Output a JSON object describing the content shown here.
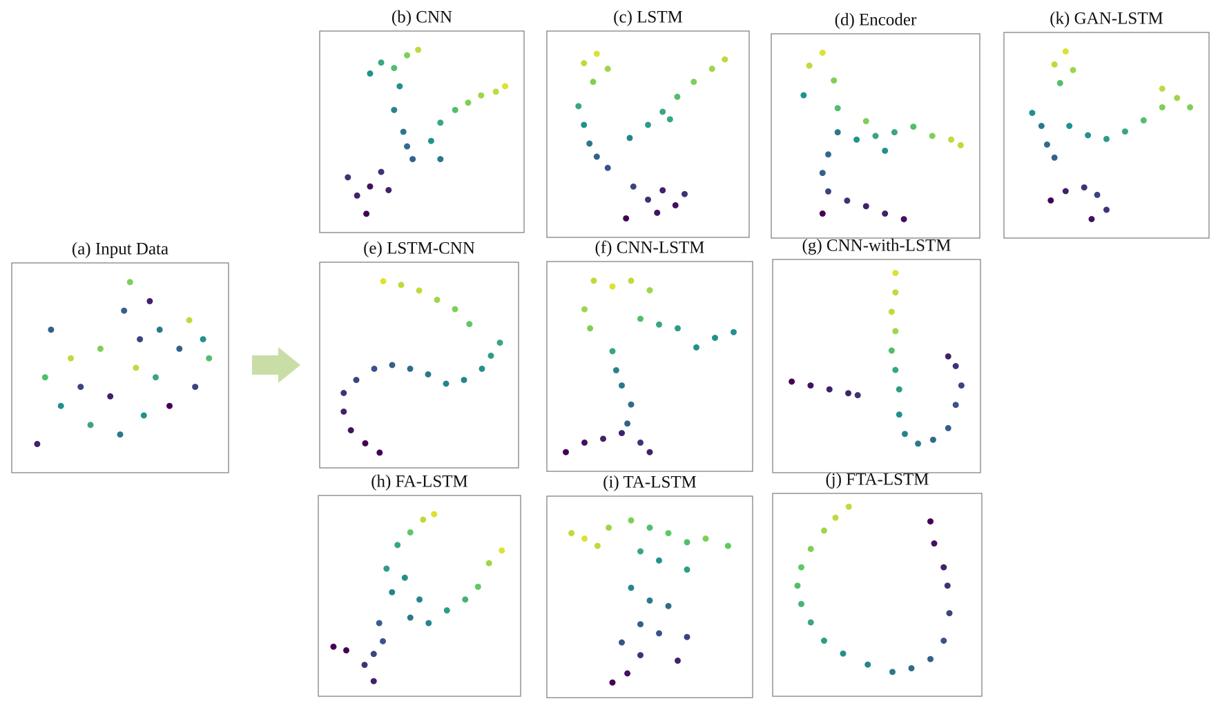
{
  "chart_data": [
    {
      "type": "scatter",
      "title": "(a) Input Data",
      "colormap": "viridis",
      "clim": [
        0,
        1
      ],
      "xlim": [
        0,
        100
      ],
      "ylim": [
        0,
        100
      ],
      "x": [
        8,
        12,
        15,
        20,
        25,
        30,
        35,
        40,
        45,
        50,
        52,
        55,
        58,
        60,
        62,
        65,
        68,
        70,
        75,
        80,
        85,
        88,
        92,
        95
      ],
      "y": [
        10,
        45,
        70,
        30,
        55,
        40,
        20,
        60,
        35,
        15,
        80,
        95,
        50,
        65,
        25,
        85,
        45,
        70,
        30,
        60,
        75,
        40,
        65,
        55
      ],
      "c": [
        0.1,
        0.7,
        0.3,
        0.5,
        0.9,
        0.2,
        0.6,
        0.8,
        0.1,
        0.4,
        0.3,
        0.8,
        0.9,
        0.2,
        0.5,
        0.1,
        0.6,
        0.4,
        0.0,
        0.3,
        0.9,
        0.2,
        0.5,
        0.7
      ]
    },
    {
      "type": "scatter",
      "title": "(b) CNN",
      "colormap": "viridis",
      "clim": [
        0,
        1
      ],
      "xlim": [
        0,
        100
      ],
      "ylim": [
        0,
        100
      ],
      "x": [
        22,
        28,
        35,
        42,
        48,
        38,
        35,
        40,
        42,
        45,
        55,
        60,
        68,
        75,
        82,
        90,
        95,
        60,
        10,
        15,
        22,
        28,
        20,
        32
      ],
      "y": [
        82,
        88,
        85,
        92,
        95,
        75,
        62,
        50,
        42,
        35,
        45,
        55,
        62,
        66,
        70,
        72,
        75,
        35,
        25,
        15,
        20,
        28,
        5,
        18
      ],
      "c": [
        0.5,
        0.6,
        0.7,
        0.8,
        0.9,
        0.5,
        0.45,
        0.4,
        0.35,
        0.3,
        0.5,
        0.6,
        0.7,
        0.8,
        0.85,
        0.9,
        0.95,
        0.4,
        0.15,
        0.1,
        0.05,
        0.15,
        0.0,
        0.1
      ]
    },
    {
      "type": "scatter",
      "title": "(c) LSTM",
      "colormap": "viridis",
      "clim": [
        0,
        1
      ],
      "xlim": [
        0,
        100
      ],
      "ylim": [
        0,
        100
      ],
      "x": [
        15,
        22,
        28,
        20,
        12,
        15,
        18,
        22,
        28,
        40,
        50,
        58,
        66,
        75,
        85,
        92,
        62,
        42,
        50,
        58,
        65,
        70,
        38,
        55
      ],
      "y": [
        88,
        93,
        85,
        78,
        65,
        55,
        45,
        38,
        32,
        48,
        55,
        62,
        70,
        78,
        85,
        90,
        58,
        22,
        15,
        20,
        12,
        18,
        5,
        8
      ],
      "c": [
        0.9,
        0.95,
        0.85,
        0.8,
        0.6,
        0.5,
        0.4,
        0.3,
        0.25,
        0.45,
        0.55,
        0.6,
        0.7,
        0.8,
        0.85,
        0.9,
        0.6,
        0.2,
        0.15,
        0.1,
        0.05,
        0.15,
        0.0,
        0.05
      ]
    },
    {
      "type": "scatter",
      "title": "(d) Encoder",
      "colormap": "viridis",
      "clim": [
        0,
        1
      ],
      "xlim": [
        0,
        100
      ],
      "ylim": [
        0,
        100
      ],
      "x": [
        15,
        22,
        28,
        12,
        30,
        30,
        40,
        50,
        60,
        70,
        80,
        90,
        95,
        45,
        55,
        25,
        22,
        25,
        35,
        45,
        55,
        65,
        22
      ],
      "y": [
        88,
        95,
        80,
        72,
        65,
        52,
        48,
        50,
        52,
        55,
        50,
        48,
        45,
        58,
        42,
        40,
        30,
        20,
        15,
        12,
        8,
        5,
        8
      ],
      "c": [
        0.9,
        0.95,
        0.8,
        0.5,
        0.7,
        0.4,
        0.5,
        0.6,
        0.6,
        0.7,
        0.8,
        0.9,
        0.9,
        0.8,
        0.5,
        0.35,
        0.3,
        0.2,
        0.15,
        0.1,
        0.1,
        0.05,
        0.0
      ]
    },
    {
      "type": "scatter",
      "title": "(k) GAN-LSTM",
      "colormap": "viridis",
      "clim": [
        0,
        1
      ],
      "xlim": [
        0,
        100
      ],
      "ylim": [
        0,
        100
      ],
      "x": [
        22,
        28,
        32,
        25,
        10,
        15,
        18,
        22,
        30,
        40,
        50,
        60,
        70,
        80,
        88,
        95,
        80,
        20,
        28,
        38,
        45,
        50,
        42
      ],
      "y": [
        88,
        95,
        85,
        78,
        62,
        55,
        45,
        38,
        55,
        50,
        48,
        52,
        58,
        65,
        70,
        65,
        75,
        15,
        20,
        22,
        18,
        10,
        5
      ],
      "c": [
        0.9,
        0.95,
        0.85,
        0.7,
        0.5,
        0.4,
        0.35,
        0.3,
        0.5,
        0.5,
        0.55,
        0.6,
        0.7,
        0.8,
        0.85,
        0.8,
        0.9,
        0.0,
        0.1,
        0.15,
        0.2,
        0.15,
        0.05
      ]
    },
    {
      "type": "scatter",
      "title": "(e) LSTM-CNN",
      "colormap": "viridis",
      "clim": [
        0,
        1
      ],
      "xlim": [
        0,
        100
      ],
      "ylim": [
        0,
        100
      ],
      "x": [
        30,
        40,
        50,
        60,
        70,
        78,
        95,
        90,
        85,
        75,
        65,
        55,
        45,
        35,
        25,
        15,
        8,
        8,
        12,
        20,
        28
      ],
      "y": [
        95,
        93,
        90,
        85,
        80,
        72,
        62,
        55,
        48,
        42,
        40,
        45,
        48,
        50,
        48,
        42,
        35,
        25,
        15,
        8,
        3
      ],
      "c": [
        0.95,
        0.9,
        0.9,
        0.85,
        0.8,
        0.75,
        0.6,
        0.55,
        0.5,
        0.45,
        0.45,
        0.4,
        0.35,
        0.3,
        0.25,
        0.2,
        0.15,
        0.1,
        0.05,
        0.0,
        0.0
      ]
    },
    {
      "type": "scatter",
      "title": "(f) CNN-LSTM",
      "colormap": "viridis",
      "clim": [
        0,
        1
      ],
      "xlim": [
        0,
        100
      ],
      "ylim": [
        0,
        100
      ],
      "x": [
        20,
        30,
        40,
        50,
        15,
        18,
        45,
        55,
        65,
        75,
        85,
        95,
        30,
        32,
        35,
        40,
        38,
        5,
        15,
        25,
        35,
        45,
        50
      ],
      "y": [
        95,
        92,
        95,
        90,
        80,
        70,
        75,
        72,
        70,
        60,
        65,
        68,
        58,
        48,
        40,
        30,
        20,
        5,
        10,
        12,
        15,
        10,
        5
      ],
      "c": [
        0.9,
        0.95,
        0.9,
        0.85,
        0.85,
        0.8,
        0.7,
        0.6,
        0.55,
        0.5,
        0.5,
        0.5,
        0.6,
        0.45,
        0.4,
        0.35,
        0.3,
        0.0,
        0.05,
        0.1,
        0.1,
        0.15,
        0.1
      ]
    },
    {
      "type": "scatter",
      "title": "(g) CNN-with-LSTM",
      "colormap": "viridis",
      "clim": [
        0,
        1
      ],
      "xlim": [
        0,
        100
      ],
      "ylim": [
        0,
        100
      ],
      "x": [
        5,
        15,
        25,
        35,
        40,
        60,
        60,
        58,
        60,
        58,
        60,
        62,
        62,
        65,
        72,
        80,
        88,
        92,
        95,
        92,
        88
      ],
      "y": [
        42,
        40,
        38,
        36,
        35,
        98,
        88,
        78,
        68,
        58,
        48,
        38,
        25,
        15,
        10,
        12,
        18,
        30,
        40,
        50,
        55
      ],
      "c": [
        0.0,
        0.05,
        0.1,
        0.1,
        0.15,
        0.95,
        0.9,
        0.9,
        0.85,
        0.7,
        0.6,
        0.55,
        0.5,
        0.45,
        0.4,
        0.35,
        0.3,
        0.25,
        0.2,
        0.15,
        0.1
      ]
    },
    {
      "type": "scatter",
      "title": "(h) FA-LSTM",
      "colormap": "viridis",
      "clim": [
        0,
        1
      ],
      "xlim": [
        0,
        100
      ],
      "ylim": [
        0,
        100
      ],
      "x": [
        52,
        58,
        45,
        38,
        32,
        42,
        35,
        50,
        45,
        55,
        65,
        75,
        82,
        88,
        95,
        28,
        30,
        25,
        10,
        3,
        20,
        25
      ],
      "y": [
        92,
        95,
        85,
        78,
        65,
        60,
        52,
        48,
        38,
        35,
        42,
        48,
        55,
        68,
        75,
        35,
        25,
        18,
        20,
        22,
        12,
        3
      ],
      "c": [
        0.9,
        0.95,
        0.75,
        0.6,
        0.55,
        0.5,
        0.45,
        0.45,
        0.4,
        0.45,
        0.55,
        0.65,
        0.75,
        0.85,
        0.95,
        0.3,
        0.25,
        0.2,
        0.0,
        0.0,
        0.15,
        0.1
      ]
    },
    {
      "type": "scatter",
      "title": "(i) TA-LSTM",
      "colormap": "viridis",
      "clim": [
        0,
        1
      ],
      "xlim": [
        0,
        100
      ],
      "ylim": [
        0,
        100
      ],
      "x": [
        8,
        15,
        22,
        28,
        40,
        50,
        60,
        70,
        80,
        92,
        45,
        55,
        70,
        40,
        50,
        60,
        45,
        55,
        70,
        35,
        45,
        38,
        30,
        65
      ],
      "y": [
        85,
        82,
        78,
        88,
        92,
        88,
        85,
        80,
        82,
        78,
        75,
        70,
        65,
        55,
        48,
        45,
        35,
        30,
        28,
        25,
        18,
        8,
        3,
        15
      ],
      "c": [
        0.9,
        0.95,
        0.9,
        0.85,
        0.8,
        0.7,
        0.75,
        0.7,
        0.8,
        0.75,
        0.6,
        0.5,
        0.55,
        0.45,
        0.4,
        0.35,
        0.3,
        0.25,
        0.2,
        0.25,
        0.15,
        0.05,
        0.0,
        0.1
      ]
    },
    {
      "type": "scatter",
      "title": "(j) FTA-LSTM",
      "colormap": "viridis",
      "clim": [
        0,
        1
      ],
      "xlim": [
        0,
        100
      ],
      "ylim": [
        0,
        100
      ],
      "x": [
        35,
        28,
        22,
        15,
        10,
        8,
        10,
        15,
        22,
        32,
        45,
        58,
        68,
        78,
        85,
        88,
        87,
        85,
        80,
        78
      ],
      "y": [
        98,
        92,
        85,
        75,
        65,
        55,
        45,
        35,
        25,
        18,
        12,
        8,
        10,
        15,
        25,
        40,
        55,
        65,
        78,
        90
      ],
      "c": [
        0.9,
        0.9,
        0.85,
        0.8,
        0.75,
        0.7,
        0.65,
        0.6,
        0.55,
        0.5,
        0.45,
        0.4,
        0.35,
        0.3,
        0.25,
        0.2,
        0.15,
        0.1,
        0.05,
        0.0
      ]
    }
  ]
}
